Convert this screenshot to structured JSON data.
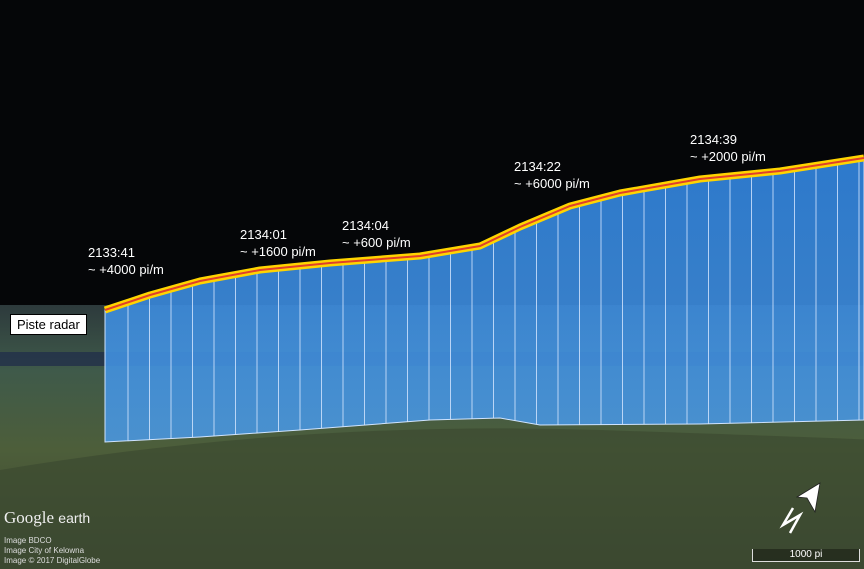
{
  "labels": [
    {
      "time": "2133:41",
      "rate": "~ +4000 pi/m"
    },
    {
      "time": "2134:01",
      "rate": "~ +1600 pi/m"
    },
    {
      "time": "2134:04",
      "rate": "~ +600 pi/m"
    },
    {
      "time": "2134:22",
      "rate": "~ +6000 pi/m"
    },
    {
      "time": "2134:39",
      "rate": "~ +2000 pi/m"
    }
  ],
  "radar_label": "Piste radar",
  "brand": {
    "google": "Google",
    "earth": "earth"
  },
  "credits": [
    "Image BDCO",
    "Image City of Kelowna",
    "Image © 2017 DigitalGlobe"
  ],
  "scale": "1000 pi",
  "icons": [
    "north-arrow-icon"
  ],
  "colors": {
    "curtain": "#3a8ee0",
    "track": "#ffd400",
    "track_core": "#e0402a"
  }
}
